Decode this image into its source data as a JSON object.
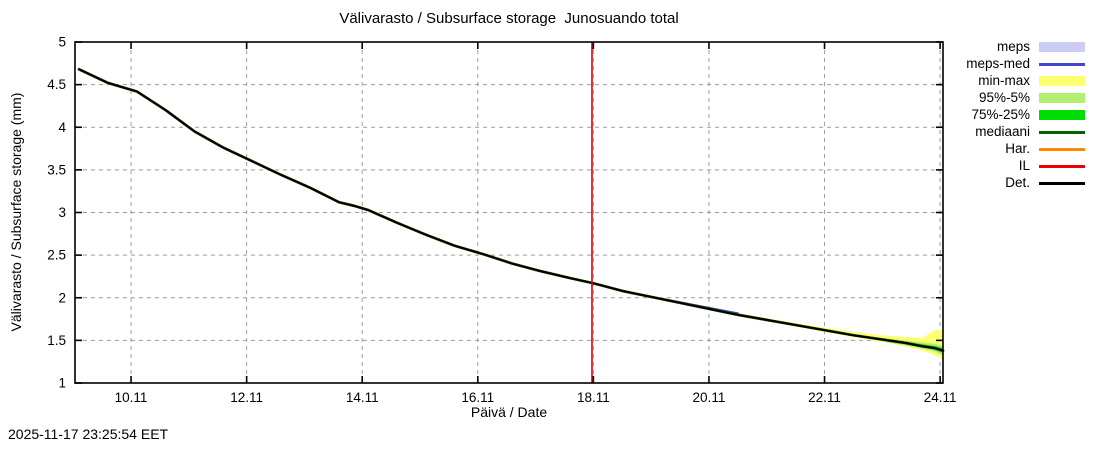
{
  "title": "Välivarasto / Subsurface storage  Junosuando total",
  "footer": {
    "timestamp": "2025-11-17 23:25:54 EET"
  },
  "legend": {
    "position": "right-outside",
    "items": [
      {
        "label": "meps",
        "swatch": "band",
        "color": "#ccccf5"
      },
      {
        "label": "meps-med",
        "swatch": "line",
        "color": "#4444cc"
      },
      {
        "label": "min-max",
        "swatch": "band",
        "color": "#ffff73"
      },
      {
        "label": "95%-5%",
        "swatch": "band",
        "color": "#b2ef72"
      },
      {
        "label": "75%-25%",
        "swatch": "band",
        "color": "#00dd00"
      },
      {
        "label": "mediaani",
        "swatch": "line",
        "color": "#006400"
      },
      {
        "label": "Har.",
        "swatch": "line",
        "color": "#ff8800"
      },
      {
        "label": "IL",
        "swatch": "line",
        "color": "#ee0000"
      },
      {
        "label": "Det.",
        "swatch": "line",
        "color": "#000000"
      }
    ]
  },
  "chart_data": {
    "type": "line",
    "title": "Välivarasto / Subsurface storage  Junosuando total",
    "xlabel": "Päivä / Date",
    "ylabel": "Välivarasto / Subsurface storage (mm)",
    "xlim": [
      9.03,
      24.05
    ],
    "ylim": [
      1,
      5
    ],
    "grid": "dashed",
    "x_ticks": [
      {
        "value": 10,
        "label": "10.11"
      },
      {
        "value": 12,
        "label": "12.11"
      },
      {
        "value": 14,
        "label": "14.11"
      },
      {
        "value": 16,
        "label": "16.11"
      },
      {
        "value": 18,
        "label": "18.11"
      },
      {
        "value": 20,
        "label": "20.11"
      },
      {
        "value": 22,
        "label": "22.11"
      },
      {
        "value": 24,
        "label": "24.11"
      }
    ],
    "y_ticks": [
      {
        "value": 1,
        "label": "1"
      },
      {
        "value": 1.5,
        "label": "1.5"
      },
      {
        "value": 2,
        "label": "2"
      },
      {
        "value": 2.5,
        "label": "2.5"
      },
      {
        "value": 3,
        "label": "3"
      },
      {
        "value": 3.5,
        "label": "3.5"
      },
      {
        "value": 4,
        "label": "4"
      },
      {
        "value": 4.5,
        "label": "4.5"
      },
      {
        "value": 5,
        "label": "5"
      }
    ],
    "current_time_line": {
      "x": 17.976,
      "color": "#dd0000",
      "note": "forecast start 2025-11-17 23:25"
    },
    "x": [
      9.1,
      9.6,
      10.1,
      10.6,
      11.1,
      11.6,
      12.1,
      12.6,
      13.1,
      13.6,
      13.85,
      14.1,
      14.6,
      15.1,
      15.6,
      16.1,
      16.6,
      17.1,
      17.6,
      18.0,
      18.5,
      19.0,
      19.5,
      20.0,
      20.5,
      21.0,
      21.5,
      22.0,
      22.5,
      23.0,
      23.4,
      23.7,
      23.9,
      24.05
    ],
    "bands": [
      {
        "name": "min-max",
        "color": "#ffff73",
        "hi": [
          null,
          null,
          null,
          null,
          null,
          null,
          null,
          null,
          null,
          null,
          null,
          null,
          null,
          null,
          null,
          null,
          null,
          null,
          null,
          2.17,
          2.09,
          2.02,
          1.96,
          1.89,
          1.82,
          1.76,
          1.7,
          1.65,
          1.6,
          1.56,
          1.54,
          1.53,
          1.62,
          1.62
        ],
        "lo": [
          null,
          null,
          null,
          null,
          null,
          null,
          null,
          null,
          null,
          null,
          null,
          null,
          null,
          null,
          null,
          null,
          null,
          null,
          null,
          2.17,
          2.07,
          2.0,
          1.93,
          1.86,
          1.79,
          1.73,
          1.66,
          1.6,
          1.54,
          1.48,
          1.43,
          1.38,
          1.33,
          1.27
        ]
      },
      {
        "name": "95%-5%",
        "color": "#b2ef72",
        "hi": [
          null,
          null,
          null,
          null,
          null,
          null,
          null,
          null,
          null,
          null,
          null,
          null,
          null,
          null,
          null,
          null,
          null,
          null,
          null,
          2.17,
          2.085,
          2.015,
          1.945,
          1.875,
          1.81,
          1.75,
          1.69,
          1.63,
          1.575,
          1.53,
          1.5,
          1.475,
          1.46,
          1.44
        ],
        "lo": [
          null,
          null,
          null,
          null,
          null,
          null,
          null,
          null,
          null,
          null,
          null,
          null,
          null,
          null,
          null,
          null,
          null,
          null,
          null,
          2.17,
          2.075,
          2.005,
          1.935,
          1.865,
          1.79,
          1.73,
          1.67,
          1.61,
          1.545,
          1.49,
          1.44,
          1.4,
          1.37,
          1.32
        ]
      },
      {
        "name": "75%-25%",
        "color": "#00dd00",
        "hi": [
          null,
          null,
          null,
          null,
          null,
          null,
          null,
          null,
          null,
          null,
          null,
          null,
          null,
          null,
          null,
          null,
          null,
          null,
          null,
          2.17,
          2.082,
          2.012,
          1.942,
          1.872,
          1.805,
          1.745,
          1.685,
          1.625,
          1.565,
          1.52,
          1.485,
          1.455,
          1.435,
          1.41
        ],
        "lo": [
          null,
          null,
          null,
          null,
          null,
          null,
          null,
          null,
          null,
          null,
          null,
          null,
          null,
          null,
          null,
          null,
          null,
          null,
          null,
          2.17,
          2.078,
          2.008,
          1.938,
          1.868,
          1.795,
          1.735,
          1.675,
          1.615,
          1.555,
          1.5,
          1.46,
          1.42,
          1.39,
          1.355
        ]
      },
      {
        "name": "meps",
        "color": "#ccccf5",
        "hi": [
          null,
          null,
          null,
          null,
          null,
          null,
          null,
          null,
          null,
          null,
          null,
          null,
          null,
          null,
          null,
          null,
          null,
          null,
          null,
          2.175,
          2.09,
          2.02,
          1.955,
          1.89,
          1.825,
          null,
          null,
          null,
          null,
          null,
          null,
          null,
          null,
          null
        ],
        "lo": [
          null,
          null,
          null,
          null,
          null,
          null,
          null,
          null,
          null,
          null,
          null,
          null,
          null,
          null,
          null,
          null,
          null,
          null,
          null,
          2.165,
          2.07,
          2.0,
          1.935,
          1.87,
          1.805,
          null,
          null,
          null,
          null,
          null,
          null,
          null,
          null,
          null
        ]
      }
    ],
    "series": [
      {
        "name": "Har.",
        "color": "#ff8800",
        "width": 2,
        "values": [
          4.68,
          4.52,
          4.42,
          4.2,
          3.95,
          3.76,
          3.6,
          3.44,
          3.29,
          3.12,
          3.08,
          3.03,
          2.88,
          2.74,
          2.61,
          2.51,
          2.4,
          2.31,
          2.23,
          2.17,
          2.08,
          2.01,
          1.94,
          1.87,
          1.8,
          1.74,
          1.68,
          1.62,
          1.56,
          1.51,
          1.47,
          1.43,
          1.41,
          1.38
        ]
      },
      {
        "name": "meps-med",
        "color": "#4444cc",
        "width": 2,
        "values": [
          null,
          null,
          null,
          null,
          null,
          null,
          null,
          null,
          null,
          null,
          null,
          null,
          null,
          null,
          null,
          null,
          null,
          null,
          null,
          2.17,
          2.082,
          2.012,
          1.947,
          1.882,
          1.817,
          null,
          null,
          null,
          null,
          null,
          null,
          null,
          null,
          null
        ]
      },
      {
        "name": "IL",
        "color": "#ee0000",
        "width": 2.6,
        "values": [
          4.68,
          4.52,
          4.42,
          4.2,
          3.95,
          3.76,
          3.6,
          3.44,
          3.29,
          3.12,
          3.08,
          3.03,
          2.88,
          2.74,
          2.61,
          2.51,
          2.4,
          2.31,
          2.23,
          2.17,
          2.08,
          2.01,
          1.94,
          1.87,
          1.8,
          1.74,
          1.68,
          1.62,
          1.56,
          1.51,
          1.47,
          1.43,
          1.41,
          1.38
        ]
      },
      {
        "name": "mediaani",
        "color": "#006400",
        "width": 2.6,
        "values": [
          4.68,
          4.52,
          4.42,
          4.2,
          3.95,
          3.76,
          3.6,
          3.44,
          3.29,
          3.12,
          3.08,
          3.03,
          2.88,
          2.74,
          2.61,
          2.51,
          2.4,
          2.31,
          2.23,
          2.17,
          2.08,
          2.01,
          1.94,
          1.87,
          1.8,
          1.74,
          1.68,
          1.62,
          1.56,
          1.51,
          1.47,
          1.43,
          1.41,
          1.38
        ]
      },
      {
        "name": "Det.",
        "color": "#000000",
        "width": 1.9,
        "values": [
          4.68,
          4.52,
          4.42,
          4.2,
          3.95,
          3.76,
          3.6,
          3.44,
          3.29,
          3.12,
          3.08,
          3.03,
          2.88,
          2.74,
          2.61,
          2.51,
          2.4,
          2.31,
          2.23,
          2.17,
          2.08,
          2.01,
          1.94,
          1.87,
          1.8,
          1.74,
          1.68,
          1.62,
          1.56,
          1.51,
          1.47,
          1.43,
          1.41,
          1.38
        ]
      }
    ]
  }
}
